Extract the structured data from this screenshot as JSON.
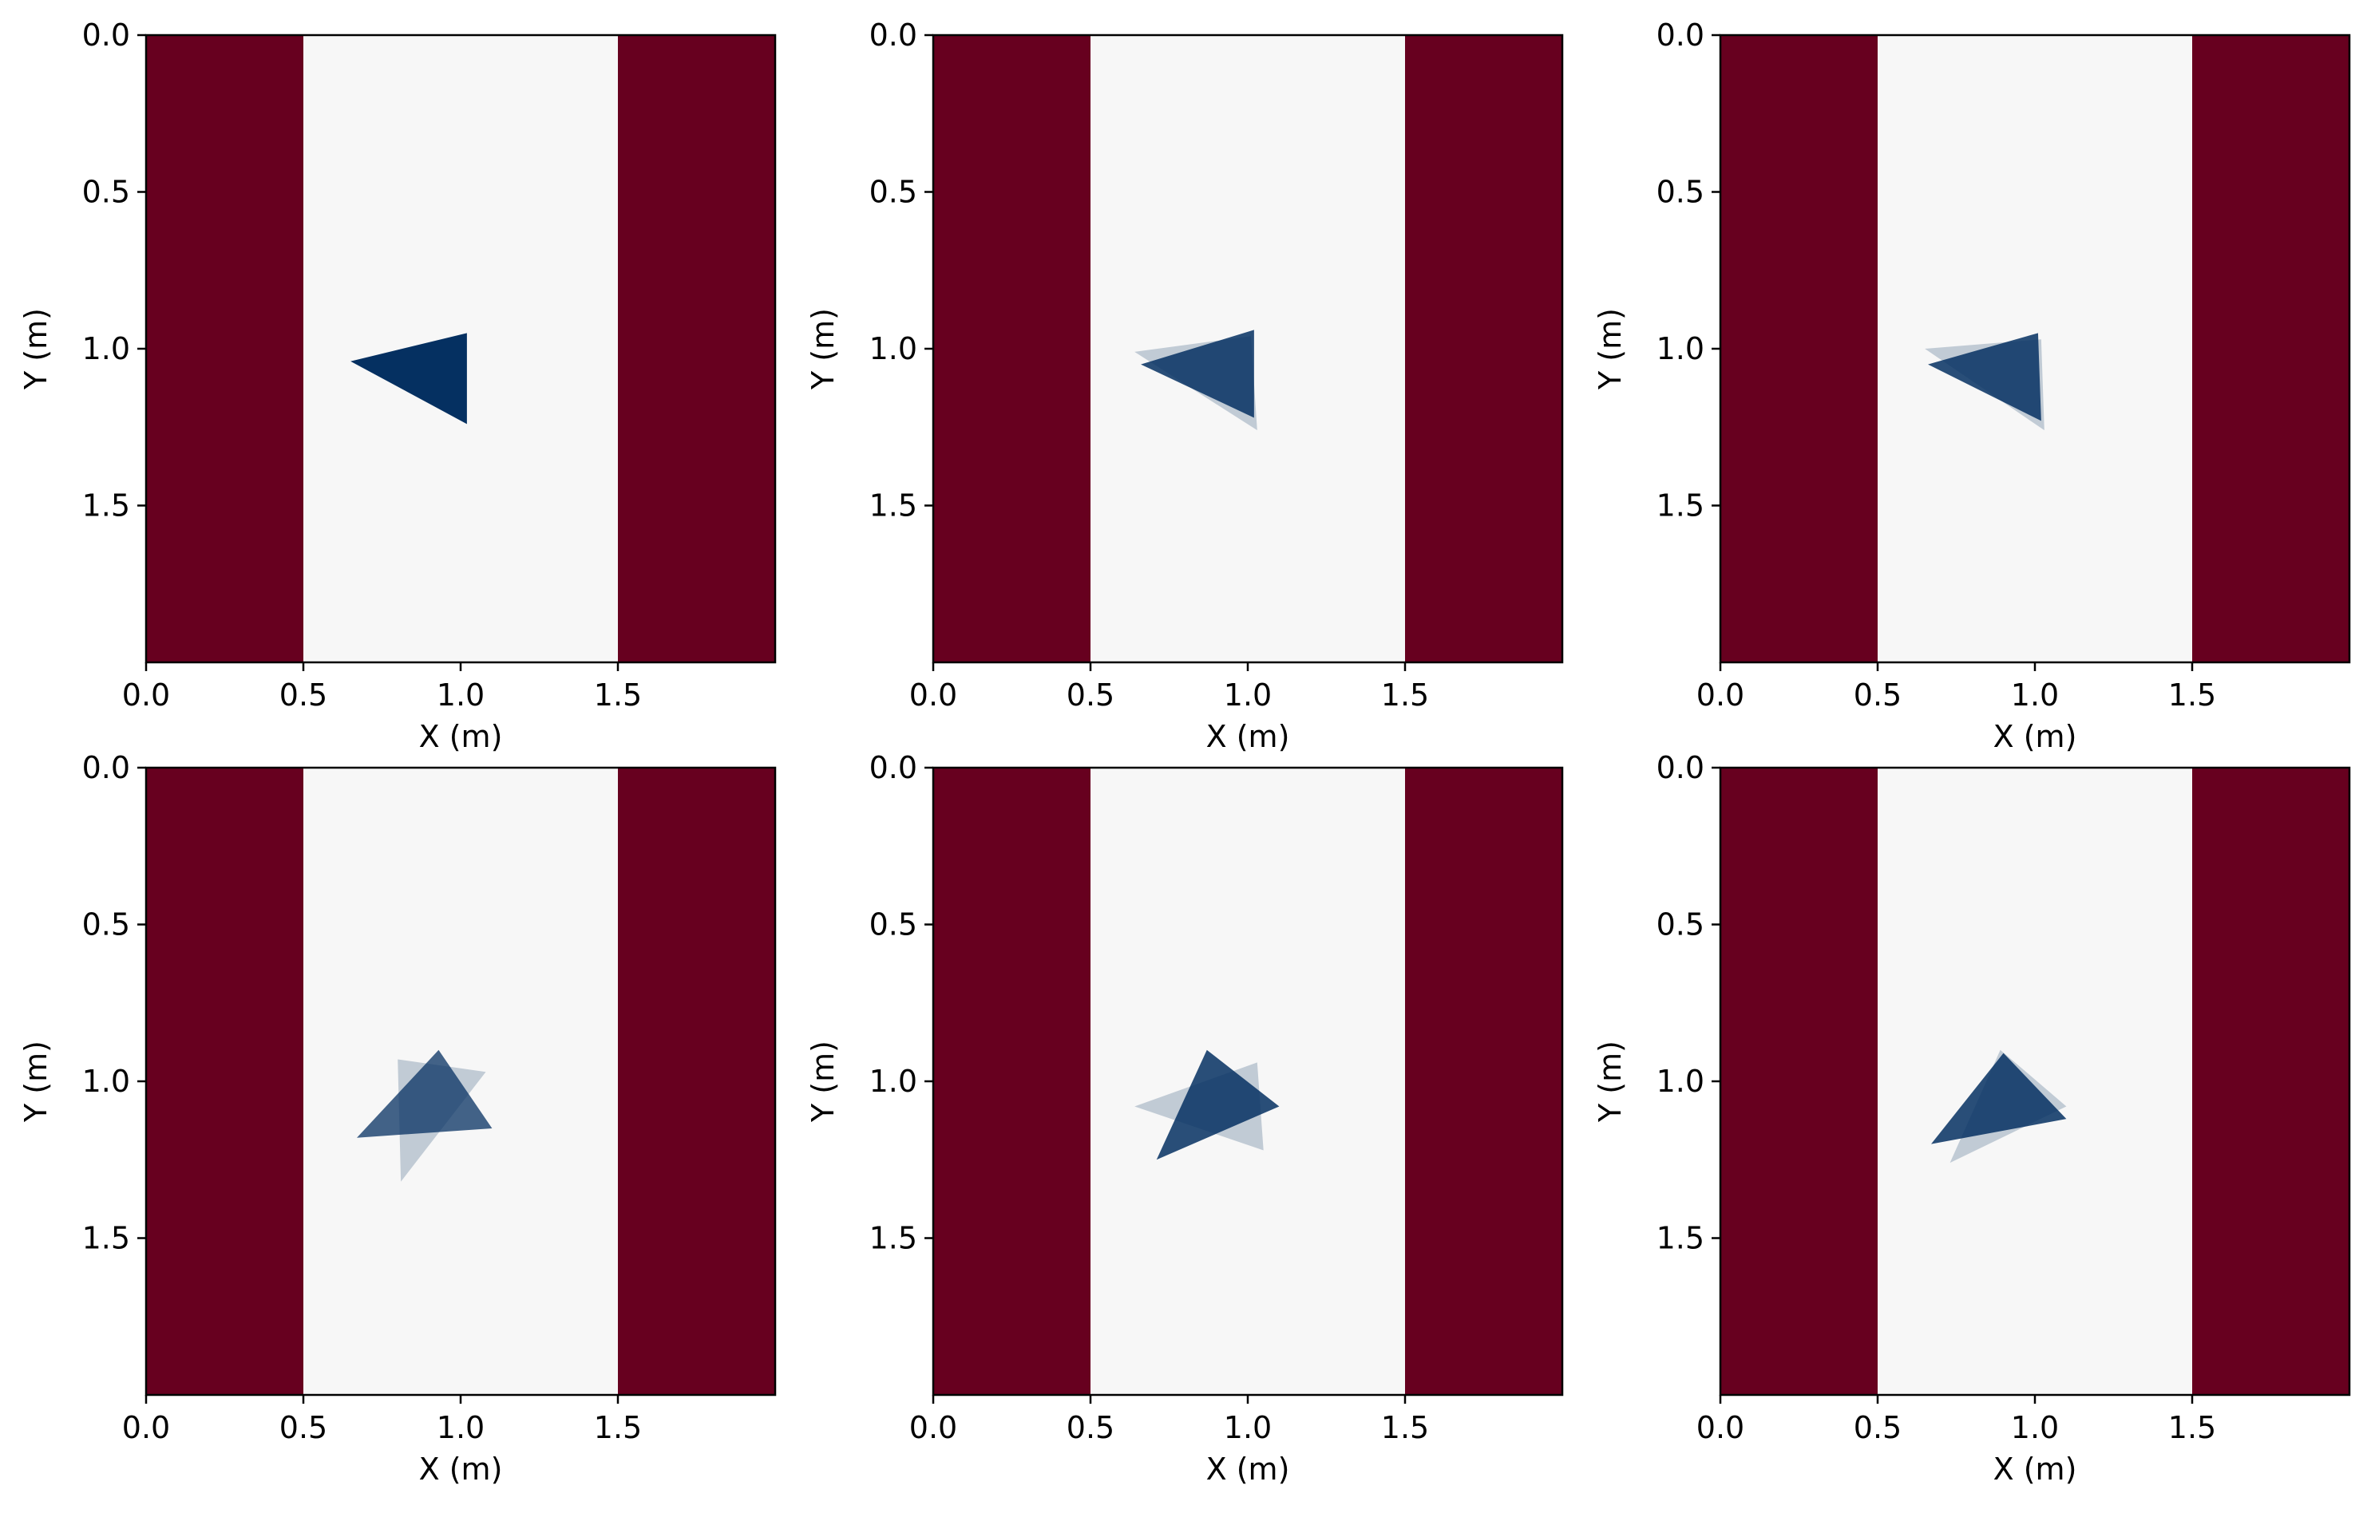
{
  "figure": {
    "rows": 2,
    "cols": 3
  },
  "colors": {
    "wall": "#67001f",
    "floor": "#f7f7f7",
    "shape": "#053061",
    "axis": "#000000"
  },
  "chart_data": [
    {
      "type": "heatmap",
      "title": "",
      "xlabel": "X (m)",
      "ylabel": "Y (m)",
      "xlim": [
        0,
        2
      ],
      "ylim": [
        2,
        0
      ],
      "y_inverted": true,
      "xticks": [
        "0.0",
        "0.5",
        "1.0",
        "1.5"
      ],
      "yticks": [
        "0.0",
        "0.5",
        "1.0",
        "1.5"
      ],
      "grid": false,
      "legend": "none",
      "regions": [
        {
          "name": "wall",
          "x": [
            0,
            0.5
          ]
        },
        {
          "name": "floor",
          "x": [
            0.5,
            1.5
          ]
        },
        {
          "name": "wall",
          "x": [
            1.5,
            2.0
          ]
        }
      ],
      "shapes": [
        {
          "opacity": 1.0,
          "vertices": [
            [
              0.65,
              1.04
            ],
            [
              1.02,
              0.95
            ],
            [
              1.02,
              1.24
            ]
          ]
        }
      ]
    },
    {
      "type": "heatmap",
      "title": "",
      "xlabel": "X (m)",
      "ylabel": "Y (m)",
      "xlim": [
        0,
        2
      ],
      "ylim": [
        2,
        0
      ],
      "y_inverted": true,
      "xticks": [
        "0.0",
        "0.5",
        "1.0",
        "1.5"
      ],
      "yticks": [
        "0.0",
        "0.5",
        "1.0",
        "1.5"
      ],
      "grid": false,
      "legend": "none",
      "regions": [
        {
          "name": "wall",
          "x": [
            0,
            0.5
          ]
        },
        {
          "name": "floor",
          "x": [
            0.5,
            1.5
          ]
        },
        {
          "name": "wall",
          "x": [
            1.5,
            2.0
          ]
        }
      ],
      "shapes": [
        {
          "opacity": 0.22,
          "vertices": [
            [
              0.64,
              1.01
            ],
            [
              1.01,
              0.96
            ],
            [
              1.03,
              1.26
            ]
          ]
        },
        {
          "opacity": 0.85,
          "vertices": [
            [
              0.66,
              1.05
            ],
            [
              1.02,
              0.94
            ],
            [
              1.02,
              1.22
            ]
          ]
        }
      ]
    },
    {
      "type": "heatmap",
      "title": "",
      "xlabel": "X (m)",
      "ylabel": "Y (m)",
      "xlim": [
        0,
        2
      ],
      "ylim": [
        2,
        0
      ],
      "y_inverted": true,
      "xticks": [
        "0.0",
        "0.5",
        "1.0",
        "1.5"
      ],
      "yticks": [
        "0.0",
        "0.5",
        "1.0",
        "1.5"
      ],
      "grid": false,
      "legend": "none",
      "regions": [
        {
          "name": "wall",
          "x": [
            0,
            0.5
          ]
        },
        {
          "name": "floor",
          "x": [
            0.5,
            1.5
          ]
        },
        {
          "name": "wall",
          "x": [
            1.5,
            2.0
          ]
        }
      ],
      "shapes": [
        {
          "opacity": 0.22,
          "vertices": [
            [
              0.65,
              1.0
            ],
            [
              1.02,
              0.97
            ],
            [
              1.03,
              1.26
            ]
          ]
        },
        {
          "opacity": 0.85,
          "vertices": [
            [
              0.66,
              1.05
            ],
            [
              1.01,
              0.95
            ],
            [
              1.02,
              1.23
            ]
          ]
        }
      ]
    },
    {
      "type": "heatmap",
      "title": "",
      "xlabel": "X (m)",
      "ylabel": "Y (m)",
      "xlim": [
        0,
        2
      ],
      "ylim": [
        2,
        0
      ],
      "y_inverted": true,
      "xticks": [
        "0.0",
        "0.5",
        "1.0",
        "1.5"
      ],
      "yticks": [
        "0.0",
        "0.5",
        "1.0",
        "1.5"
      ],
      "grid": false,
      "legend": "none",
      "regions": [
        {
          "name": "wall",
          "x": [
            0,
            0.5
          ]
        },
        {
          "name": "floor",
          "x": [
            0.5,
            1.5
          ]
        },
        {
          "name": "wall",
          "x": [
            1.5,
            2.0
          ]
        }
      ],
      "shapes": [
        {
          "opacity": 0.22,
          "vertices": [
            [
              0.8,
              0.93
            ],
            [
              1.08,
              0.97
            ],
            [
              0.81,
              1.32
            ]
          ]
        },
        {
          "opacity": 0.75,
          "vertices": [
            [
              0.67,
              1.18
            ],
            [
              0.93,
              0.9
            ],
            [
              1.1,
              1.15
            ]
          ]
        }
      ]
    },
    {
      "type": "heatmap",
      "title": "",
      "xlabel": "X (m)",
      "ylabel": "Y (m)",
      "xlim": [
        0,
        2
      ],
      "ylim": [
        2,
        0
      ],
      "y_inverted": true,
      "xticks": [
        "0.0",
        "0.5",
        "1.0",
        "1.5"
      ],
      "yticks": [
        "0.0",
        "0.5",
        "1.0",
        "1.5"
      ],
      "grid": false,
      "legend": "none",
      "regions": [
        {
          "name": "wall",
          "x": [
            0,
            0.5
          ]
        },
        {
          "name": "floor",
          "x": [
            0.5,
            1.5
          ]
        },
        {
          "name": "wall",
          "x": [
            1.5,
            2.0
          ]
        }
      ],
      "shapes": [
        {
          "opacity": 0.22,
          "vertices": [
            [
              0.64,
              1.08
            ],
            [
              1.03,
              0.94
            ],
            [
              1.05,
              1.22
            ]
          ]
        },
        {
          "opacity": 0.85,
          "vertices": [
            [
              0.71,
              1.25
            ],
            [
              0.87,
              0.9
            ],
            [
              1.1,
              1.08
            ]
          ]
        }
      ]
    },
    {
      "type": "heatmap",
      "title": "",
      "xlabel": "X (m)",
      "ylabel": "Y (m)",
      "xlim": [
        0,
        2
      ],
      "ylim": [
        2,
        0
      ],
      "y_inverted": true,
      "xticks": [
        "0.0",
        "0.5",
        "1.0",
        "1.5"
      ],
      "yticks": [
        "0.0",
        "0.5",
        "1.0",
        "1.5"
      ],
      "grid": false,
      "legend": "none",
      "regions": [
        {
          "name": "wall",
          "x": [
            0,
            0.5
          ]
        },
        {
          "name": "floor",
          "x": [
            0.5,
            1.5
          ]
        },
        {
          "name": "wall",
          "x": [
            1.5,
            2.0
          ]
        }
      ],
      "shapes": [
        {
          "opacity": 0.22,
          "vertices": [
            [
              0.73,
              1.26
            ],
            [
              0.89,
              0.9
            ],
            [
              1.1,
              1.08
            ]
          ]
        },
        {
          "opacity": 0.85,
          "vertices": [
            [
              0.67,
              1.2
            ],
            [
              0.9,
              0.91
            ],
            [
              1.1,
              1.12
            ]
          ]
        }
      ]
    }
  ]
}
